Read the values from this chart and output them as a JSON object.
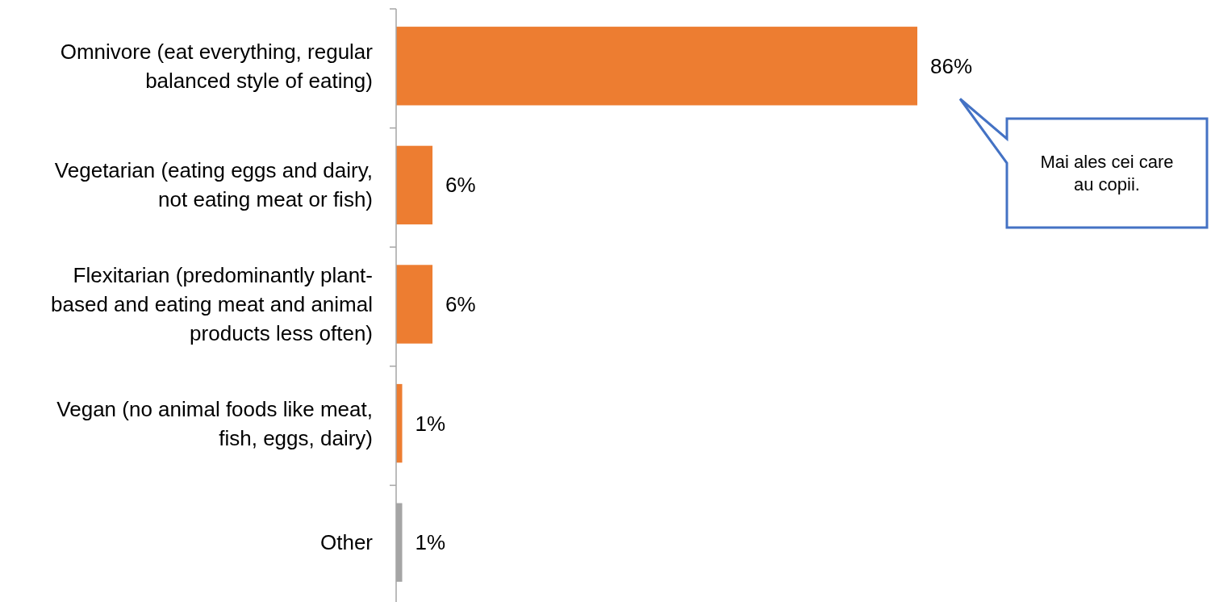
{
  "chart_data": {
    "type": "bar",
    "orientation": "horizontal",
    "categories": [
      "Omnivore (eat everything, regular balanced style of eating)",
      "Vegetarian (eating eggs and dairy, not eating meat or fish)",
      "Flexitarian (predominantly plant-based and eating meat and animal products less often)",
      "Vegan (no animal foods like meat, fish, eggs, dairy)",
      "Other"
    ],
    "values": [
      86,
      6,
      6,
      1,
      1
    ],
    "colors": [
      "#ed7d31",
      "#ed7d31",
      "#ed7d31",
      "#ed7d31",
      "#a5a5a5"
    ],
    "value_labels": [
      "86%",
      "6%",
      "6%",
      "1%",
      "1%"
    ],
    "tick_labels": "y",
    "annotations": [
      "Mai ales cei care au copii."
    ]
  }
}
